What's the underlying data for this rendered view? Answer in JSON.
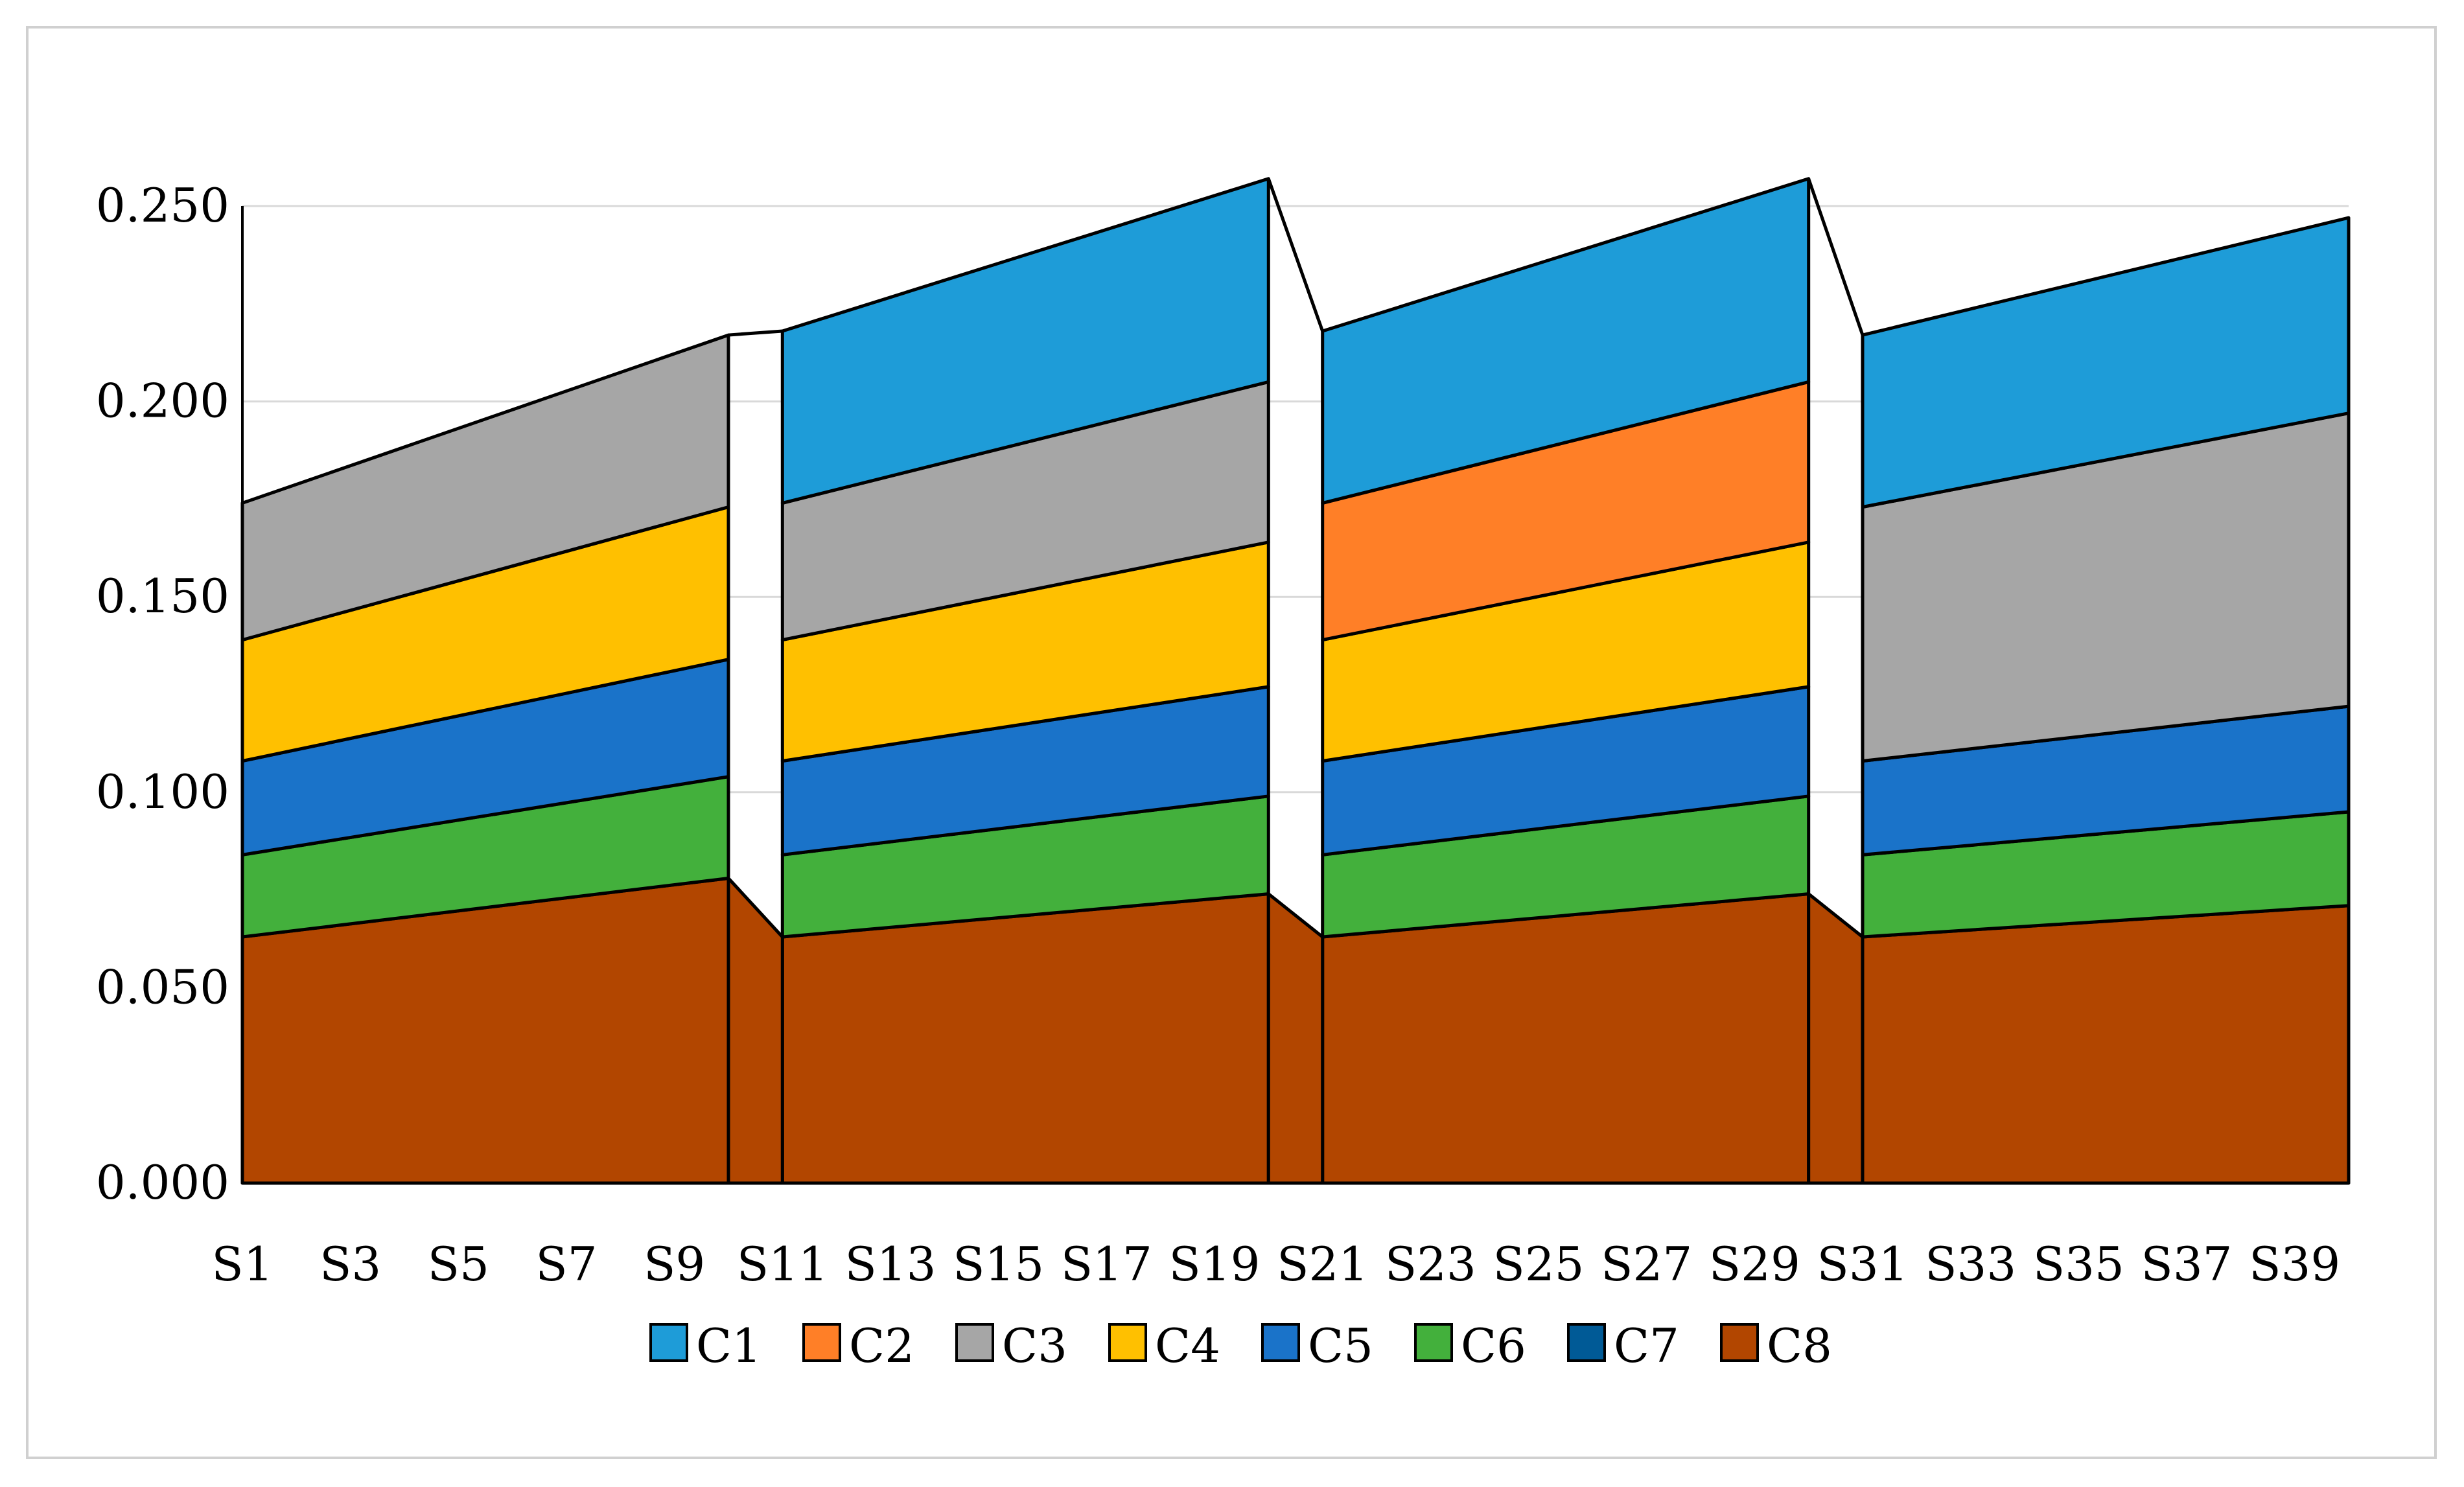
{
  "chart_data": {
    "type": "area",
    "stacked": true,
    "title": "",
    "xlabel": "",
    "ylabel": "",
    "ylim": [
      0,
      0.25
    ],
    "y_ticks": [
      "0.000",
      "0.050",
      "0.100",
      "0.150",
      "0.200",
      "0.250"
    ],
    "x_tick_labels": [
      "S1",
      "S3",
      "S5",
      "S7",
      "S9",
      "S11",
      "S13",
      "S15",
      "S17",
      "S19",
      "S21",
      "S23",
      "S25",
      "S27",
      "S29",
      "S31",
      "S33",
      "S35",
      "S37",
      "S39"
    ],
    "grid": "horizontal",
    "legend_position": "bottom",
    "colors": {
      "C1": "#1e9cd8",
      "C2": "#ff7f27",
      "C3": "#a6a6a6",
      "C4": "#ffc000",
      "C5": "#1a73c9",
      "C6": "#43b03c",
      "C7": "#005a96",
      "C8": "#b24600"
    },
    "segments": [
      {
        "x_start": 1,
        "x_end": 10,
        "series": [
          {
            "name": "C8",
            "start": 0.063,
            "end": 0.078
          },
          {
            "name": "C6",
            "start": 0.021,
            "end": 0.026
          },
          {
            "name": "C5",
            "start": 0.024,
            "end": 0.03
          },
          {
            "name": "C4",
            "start": 0.031,
            "end": 0.039
          },
          {
            "name": "C3",
            "start": 0.035,
            "end": 0.044
          }
        ]
      },
      {
        "x_start": 11,
        "x_end": 20,
        "series": [
          {
            "name": "C8",
            "start": 0.063,
            "end": 0.074
          },
          {
            "name": "C6",
            "start": 0.021,
            "end": 0.025
          },
          {
            "name": "C5",
            "start": 0.024,
            "end": 0.028
          },
          {
            "name": "C4",
            "start": 0.031,
            "end": 0.037
          },
          {
            "name": "C3",
            "start": 0.035,
            "end": 0.041
          },
          {
            "name": "C1",
            "start": 0.044,
            "end": 0.052
          }
        ]
      },
      {
        "x_start": 21,
        "x_end": 30,
        "series": [
          {
            "name": "C8",
            "start": 0.063,
            "end": 0.074
          },
          {
            "name": "C6",
            "start": 0.021,
            "end": 0.025
          },
          {
            "name": "C5",
            "start": 0.024,
            "end": 0.028
          },
          {
            "name": "C4",
            "start": 0.031,
            "end": 0.037
          },
          {
            "name": "C2",
            "start": 0.035,
            "end": 0.041
          },
          {
            "name": "C1",
            "start": 0.044,
            "end": 0.052
          }
        ]
      },
      {
        "x_start": 31,
        "x_end": 40,
        "series": [
          {
            "name": "C8",
            "start": 0.063,
            "end": 0.071
          },
          {
            "name": "C6",
            "start": 0.021,
            "end": 0.024
          },
          {
            "name": "C5",
            "start": 0.024,
            "end": 0.027
          },
          {
            "name": "C3",
            "start": 0.065,
            "end": 0.075
          },
          {
            "name": "C1",
            "start": 0.044,
            "end": 0.05
          }
        ]
      }
    ],
    "legend": [
      "C1",
      "C2",
      "C3",
      "C4",
      "C5",
      "C6",
      "C7",
      "C8"
    ]
  }
}
